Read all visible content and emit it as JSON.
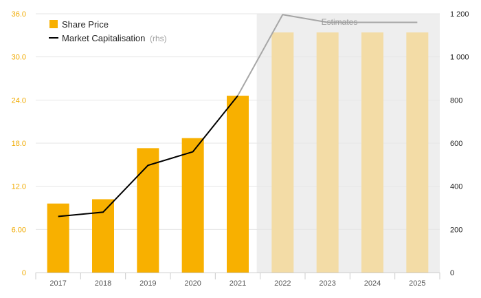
{
  "chart_data": {
    "type": "bar+line",
    "categories": [
      "2017",
      "2018",
      "2019",
      "2020",
      "2021",
      "2022",
      "2023",
      "2024",
      "2025"
    ],
    "series": [
      {
        "name": "Share Price",
        "type": "bar",
        "axis": "left",
        "values": [
          9.6,
          10.2,
          17.3,
          18.7,
          24.6,
          33.4,
          33.4,
          33.4,
          33.4
        ],
        "estimate": [
          false,
          false,
          false,
          false,
          false,
          true,
          true,
          true,
          true
        ]
      },
      {
        "name": "Market Capitalisation",
        "name_suffix": "(rhs)",
        "type": "line",
        "axis": "right",
        "values": [
          260,
          280,
          497,
          560,
          820,
          1196,
          1160,
          1160,
          1160
        ]
      }
    ],
    "left_axis": {
      "ticks": [
        0,
        6,
        12,
        18,
        24,
        30,
        36
      ],
      "tick_labels": [
        "0",
        "6.00",
        "12.0",
        "18.0",
        "24.0",
        "30.0",
        "36.0"
      ],
      "range": [
        0,
        36
      ]
    },
    "right_axis": {
      "ticks": [
        0,
        200,
        400,
        600,
        800,
        1000,
        1200
      ],
      "tick_labels": [
        "0",
        "200",
        "400",
        "600",
        "800",
        "1 000",
        "1 200"
      ],
      "range": [
        0,
        1200
      ]
    },
    "estimates_label": "Estimates",
    "estimates_start": "2022",
    "grid": true,
    "legend_position": "top-left",
    "colors": {
      "bar": "#f8b000",
      "bar_estimate": "#f3dca6",
      "line": "#000000",
      "line_estimate": "#a6a6a6",
      "estimate_band": "#eeeeee",
      "left_axis_text": "#f0aa00",
      "right_axis_text": "#222222",
      "grid": "#e6e6e6"
    }
  }
}
